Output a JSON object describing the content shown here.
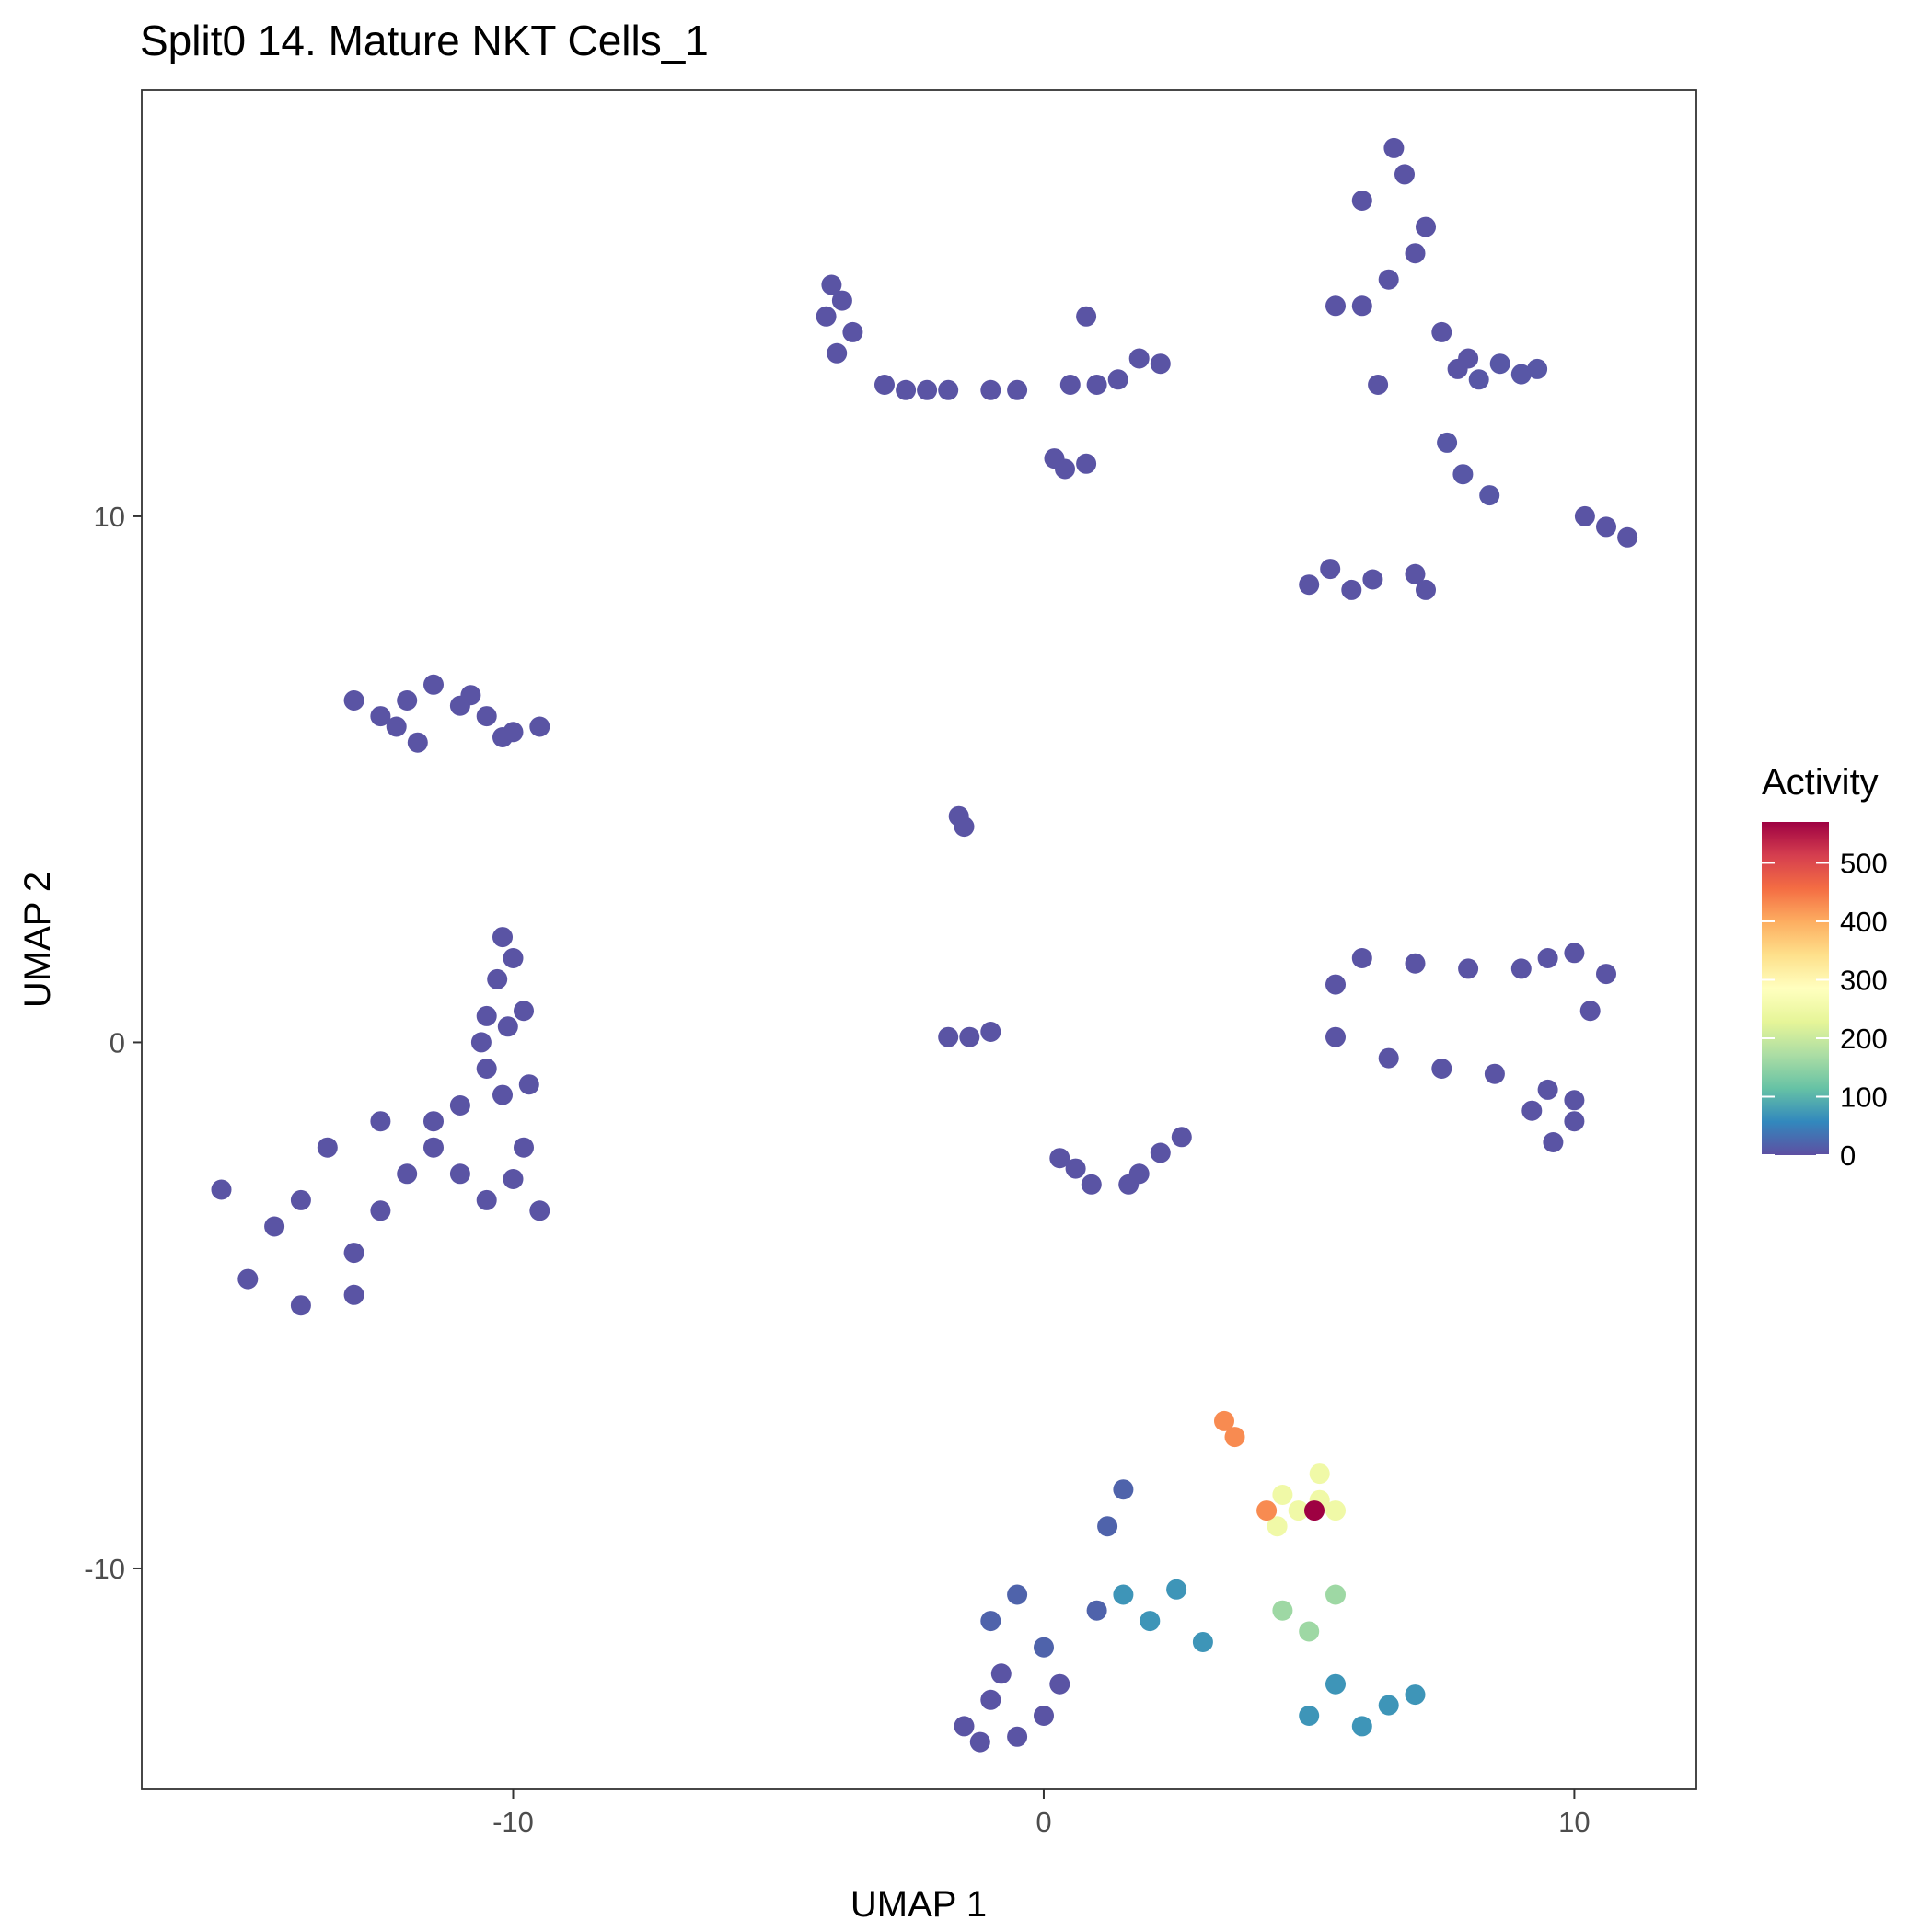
{
  "chart_data": {
    "type": "scatter",
    "title": "Split0 14. Mature NKT Cells_1",
    "xlabel": "UMAP 1",
    "ylabel": "UMAP 2",
    "xlim": [
      -17,
      12.3
    ],
    "ylim": [
      -14.2,
      18.1
    ],
    "x_ticks": [
      -10,
      0,
      10
    ],
    "x_tick_labels": [
      "-10",
      "0",
      "10"
    ],
    "y_ticks": [
      -10,
      0,
      10
    ],
    "y_tick_labels": [
      "-10",
      "0",
      "10"
    ],
    "grid": false,
    "legend": {
      "title": "Activity",
      "placement": "right",
      "min": 0,
      "max": 570,
      "ticks": [
        0,
        100,
        200,
        300,
        400,
        500
      ],
      "tick_labels": [
        "0",
        "100",
        "200",
        "300",
        "400",
        "500"
      ],
      "colors": [
        "#5e4fa2",
        "#3288bd",
        "#66c2a5",
        "#abdda4",
        "#e6f598",
        "#ffffbf",
        "#fee08b",
        "#fdae61",
        "#f46d43",
        "#d53e4f",
        "#9e0142"
      ]
    },
    "clusters": [
      {
        "x": [
          -14,
          -13,
          -15.5,
          -14.5,
          -13.5,
          -12.5,
          -12,
          -15,
          -14,
          -13,
          -12.5,
          -11.5
        ],
        "y": [
          -3,
          -4,
          -2.8,
          -3.5,
          -2,
          -3.2,
          -2.5,
          -4.5,
          -5,
          -4.8,
          -1.5,
          -2
        ],
        "activity": 5
      },
      {
        "x": [
          -11,
          -10.5,
          -9.5,
          -10,
          -9.8,
          -11.5,
          -10.2,
          -9.7,
          -10.5,
          -11
        ],
        "y": [
          -2.5,
          -3,
          -3.2,
          -2.6,
          -2,
          -1.5,
          -1,
          -0.8,
          -0.5,
          -1.2
        ],
        "activity": 5
      },
      {
        "x": [
          -10.5,
          -10.3,
          -10.1,
          -10,
          -9.8,
          -10.6,
          -10.2
        ],
        "y": [
          0.5,
          1.2,
          0.3,
          1.6,
          0.6,
          0,
          2
        ],
        "activity": 5
      },
      {
        "x": [
          -13,
          -12.5,
          -12,
          -11.5,
          -11,
          -10.5,
          -10,
          -9.5,
          -12.2,
          -11.8,
          -10.8,
          -10.2
        ],
        "y": [
          6.5,
          6.2,
          6.5,
          6.8,
          6.4,
          6.2,
          5.9,
          6,
          6,
          5.7,
          6.6,
          5.8
        ],
        "activity": 5
      },
      {
        "x": [
          -4,
          -3.8,
          -4.1,
          -3.6,
          -3.9
        ],
        "y": [
          14.4,
          14.1,
          13.8,
          13.5,
          13.1
        ],
        "activity": 5
      },
      {
        "x": [
          -3,
          -2.6,
          -2.2,
          -1.8,
          -1,
          -0.5
        ],
        "y": [
          12.5,
          12.4,
          12.4,
          12.4,
          12.4,
          12.4
        ],
        "activity": 5
      },
      {
        "x": [
          0.5,
          1,
          1.4,
          1.8,
          2.2,
          0.8
        ],
        "y": [
          12.5,
          12.5,
          12.6,
          13,
          12.9,
          13.8
        ],
        "activity": 5
      },
      {
        "x": [
          6,
          6.5,
          7,
          7.5,
          8,
          5.5,
          6,
          6.8,
          7.2,
          6.3,
          7.8,
          6.6
        ],
        "y": [
          14,
          14.5,
          15,
          13.5,
          13,
          14,
          16,
          16.5,
          15.5,
          12.5,
          12.8,
          17
        ],
        "activity": 5
      },
      {
        "x": [
          8.2,
          8.6,
          9,
          9.3,
          7.6,
          7.9,
          8.4
        ],
        "y": [
          12.6,
          12.9,
          12.7,
          12.8,
          11.4,
          10.8,
          10.4
        ],
        "activity": 8
      },
      {
        "x": [
          5,
          5.4,
          5.8,
          6.2,
          7,
          7.2
        ],
        "y": [
          8.7,
          9,
          8.6,
          8.8,
          8.9,
          8.6
        ],
        "activity": 5
      },
      {
        "x": [
          10.2,
          10.6,
          11
        ],
        "y": [
          10,
          9.8,
          9.6
        ],
        "activity": 5
      },
      {
        "x": [
          -1.6,
          -1.5
        ],
        "y": [
          4.3,
          4.1
        ],
        "activity": 5
      },
      {
        "x": [
          -1.8,
          -1.4,
          -1
        ],
        "y": [
          0.1,
          0.1,
          0.2
        ],
        "activity": 5
      },
      {
        "x": [
          0.2,
          0.4,
          0.8
        ],
        "y": [
          11.1,
          10.9,
          11
        ],
        "activity": 5
      },
      {
        "x": [
          0.3,
          0.6,
          0.9,
          1.6,
          1.8,
          2.2,
          2.6
        ],
        "y": [
          -2.2,
          -2.4,
          -2.7,
          -2.7,
          -2.5,
          -2.1,
          -1.8
        ],
        "activity": 5
      },
      {
        "x": [
          5.5,
          6,
          7,
          8,
          9,
          9.5,
          10
        ],
        "y": [
          1.1,
          1.6,
          1.5,
          1.4,
          1.4,
          1.6,
          1.7
        ],
        "activity": 5
      },
      {
        "x": [
          5.5,
          6.5,
          7.5,
          8.5,
          9.5,
          10
        ],
        "y": [
          0.1,
          -0.3,
          -0.5,
          -0.6,
          -0.9,
          -1.5
        ],
        "activity": 5
      },
      {
        "x": [
          9.2,
          9.6,
          10,
          10.3,
          10.6
        ],
        "y": [
          -1.3,
          -1.9,
          -1.1,
          0.6,
          1.3
        ],
        "activity": 5
      },
      {
        "x": [
          -1.5,
          -1,
          -0.5,
          0,
          0.3,
          -0.8,
          -1.2
        ],
        "y": [
          -13,
          -12.5,
          -13.2,
          -12.8,
          -12.2,
          -12,
          -13.3
        ],
        "activity": 5
      },
      {
        "x": [
          -1,
          -0.5,
          0,
          1,
          1.5,
          1.2
        ],
        "y": [
          -11,
          -10.5,
          -11.5,
          -10.8,
          -8.5,
          -9.2
        ],
        "activity": 20
      },
      {
        "x": [
          1.5,
          2,
          2.5,
          3
        ],
        "y": [
          -10.5,
          -11,
          -10.4,
          -11.4
        ],
        "activity": 70
      },
      {
        "x": [
          4.5,
          4.8,
          5.2,
          5.5,
          5.2,
          4.4
        ],
        "y": [
          -8.6,
          -8.9,
          -8.7,
          -8.9,
          -8.2,
          -9.2
        ],
        "activity": 250
      },
      {
        "x": [
          5.1
        ],
        "y": [
          -8.9
        ],
        "activity": 570
      },
      {
        "x": [
          4.2,
          3.6,
          3.4
        ],
        "y": [
          -8.9,
          -7.5,
          -7.2
        ],
        "activity": 430
      },
      {
        "x": [
          4.5,
          5,
          5.5
        ],
        "y": [
          -10.8,
          -11.2,
          -10.5
        ],
        "activity": 160
      },
      {
        "x": [
          5,
          5.5,
          6,
          6.5,
          7
        ],
        "y": [
          -12.8,
          -12.2,
          -13,
          -12.6,
          -12.4
        ],
        "activity": 70
      }
    ]
  }
}
